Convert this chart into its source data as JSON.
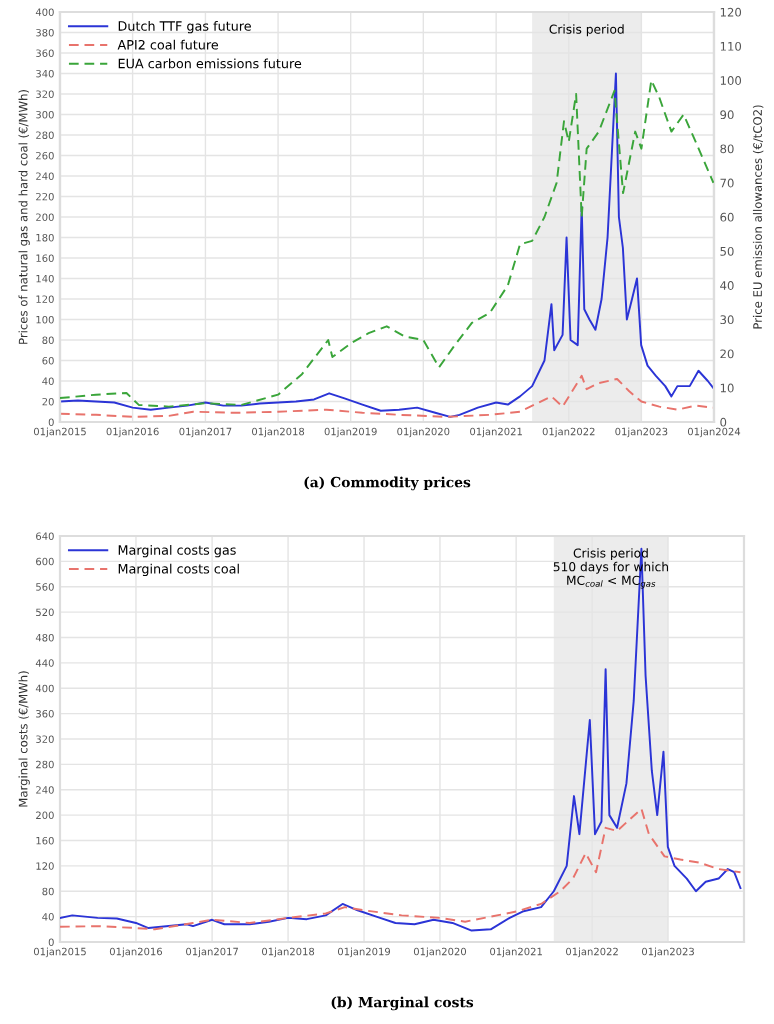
{
  "chart_data": [
    {
      "type": "line",
      "xlabel": null,
      "ylabel": "Prices of natural gas and hard coal (€/MWh)",
      "y2label": "Price EU emission allowances (€/tCO2)",
      "annotations": [
        "(a) Commodity prices"
      ],
      "legend": "top left",
      "grid": true,
      "xlim": [
        "2015-01-01",
        "2024-01-01"
      ],
      "xticks": [
        {
          "value": "2015-01-01",
          "label": "01jan2015"
        },
        {
          "value": "2016-01-01",
          "label": "01jan2016"
        },
        {
          "value": "2017-01-01",
          "label": "01jan2017"
        },
        {
          "value": "2018-01-01",
          "label": "01jan2018"
        },
        {
          "value": "2019-01-01",
          "label": "01jan2019"
        },
        {
          "value": "2020-01-01",
          "label": "01jan2020"
        },
        {
          "value": "2021-01-01",
          "label": "01jan2021"
        },
        {
          "value": "2022-01-01",
          "label": "01jan2022"
        },
        {
          "value": "2023-01-01",
          "label": "01jan2023"
        },
        {
          "value": "2024-01-01",
          "label": "01jan2024"
        }
      ],
      "ylim": [
        0,
        400
      ],
      "yticks": [
        0,
        20,
        40,
        60,
        80,
        100,
        120,
        140,
        160,
        180,
        200,
        220,
        240,
        260,
        280,
        300,
        320,
        340,
        360,
        380,
        400
      ],
      "y2lim": [
        0,
        120
      ],
      "y2ticks": [
        0,
        10,
        20,
        30,
        40,
        50,
        60,
        70,
        80,
        90,
        100,
        110,
        120
      ],
      "bands": [
        {
          "axis": "x",
          "from": "2021-07-01",
          "to": "2023-01-01",
          "label": "Crisis period",
          "color": "#ececec"
        }
      ],
      "series": [
        {
          "name": "Dutch TTF gas future",
          "color": "#2b34d6",
          "line_style": "solid",
          "x": [
            "2015-01-01",
            "2015-04-01",
            "2015-07-01",
            "2015-10-01",
            "2016-01-01",
            "2016-04-01",
            "2016-07-01",
            "2016-10-01",
            "2017-01-01",
            "2017-04-01",
            "2017-07-01",
            "2017-10-01",
            "2018-01-01",
            "2018-04-01",
            "2018-07-01",
            "2018-09-15",
            "2018-12-01",
            "2019-03-01",
            "2019-06-01",
            "2019-09-01",
            "2019-12-01",
            "2020-03-01",
            "2020-05-15",
            "2020-07-01",
            "2020-10-01",
            "2021-01-01",
            "2021-03-01",
            "2021-05-01",
            "2021-07-01",
            "2021-09-01",
            "2021-10-06",
            "2021-10-20",
            "2021-12-01",
            "2021-12-21",
            "2022-01-10",
            "2022-02-15",
            "2022-03-07",
            "2022-03-20",
            "2022-04-15",
            "2022-05-15",
            "2022-06-15",
            "2022-07-15",
            "2022-08-26",
            "2022-09-10",
            "2022-09-30",
            "2022-10-20",
            "2022-11-15",
            "2022-12-10",
            "2022-12-31",
            "2023-02-01",
            "2023-03-15",
            "2023-05-01",
            "2023-06-01",
            "2023-07-01",
            "2023-09-01",
            "2023-10-15",
            "2023-12-01",
            "2023-12-29"
          ],
          "values": [
            20,
            21,
            20,
            19,
            14,
            12,
            14,
            16,
            19,
            16,
            16,
            18,
            19,
            20,
            22,
            28,
            23,
            17,
            11,
            12,
            14,
            9,
            5,
            7,
            14,
            19,
            17,
            25,
            35,
            60,
            115,
            70,
            85,
            180,
            80,
            75,
            210,
            110,
            100,
            90,
            120,
            180,
            340,
            200,
            170,
            100,
            120,
            140,
            75,
            55,
            45,
            35,
            25,
            35,
            35,
            50,
            40,
            33
          ]
        },
        {
          "name": "API2 coal future",
          "color": "#e8736c",
          "line_style": "dashed",
          "x": [
            "2015-01-01",
            "2015-07-01",
            "2016-01-01",
            "2016-07-01",
            "2016-11-01",
            "2017-06-01",
            "2018-01-01",
            "2018-09-01",
            "2019-03-01",
            "2019-09-01",
            "2020-05-01",
            "2020-12-01",
            "2021-05-01",
            "2021-10-06",
            "2021-12-01",
            "2022-03-07",
            "2022-04-01",
            "2022-06-01",
            "2022-09-01",
            "2022-11-01",
            "2023-01-01",
            "2023-04-01",
            "2023-07-01",
            "2023-10-01",
            "2023-12-29"
          ],
          "values": [
            8,
            7,
            5,
            6,
            10,
            9,
            10,
            12,
            9,
            7,
            5,
            7,
            10,
            25,
            15,
            45,
            32,
            38,
            42,
            30,
            20,
            15,
            12,
            16,
            14
          ]
        },
        {
          "name": "EUA carbon emissions future",
          "color": "#3aa53a",
          "line_style": "dashed",
          "axis": "y2",
          "x": [
            "2015-01-01",
            "2015-07-01",
            "2015-12-01",
            "2016-02-01",
            "2016-07-01",
            "2017-01-01",
            "2017-07-01",
            "2018-01-01",
            "2018-05-01",
            "2018-09-10",
            "2018-10-01",
            "2019-01-01",
            "2019-04-01",
            "2019-07-01",
            "2019-10-01",
            "2020-01-01",
            "2020-03-20",
            "2020-06-01",
            "2020-09-01",
            "2020-12-01",
            "2021-03-01",
            "2021-05-01",
            "2021-07-01",
            "2021-09-01",
            "2021-11-01",
            "2021-12-08",
            "2022-01-01",
            "2022-02-07",
            "2022-03-07",
            "2022-04-01",
            "2022-06-01",
            "2022-08-19",
            "2022-10-01",
            "2022-12-01",
            "2023-01-01",
            "2023-02-20",
            "2023-04-01",
            "2023-06-01",
            "2023-08-01",
            "2023-10-01",
            "2023-12-29"
          ],
          "values": [
            7,
            8,
            8.5,
            5,
            4.5,
            5.5,
            5,
            8,
            14,
            24,
            19,
            23,
            26,
            28,
            25,
            24,
            16,
            22,
            29,
            32,
            40,
            52,
            53,
            60,
            70,
            88,
            82,
            96,
            60,
            80,
            85,
            97,
            67,
            85,
            80,
            100,
            95,
            85,
            90,
            82,
            70
          ]
        }
      ]
    },
    {
      "type": "line",
      "ylabel": "Marginal costs (€/MWh)",
      "annotations": [
        "(b) Marginal costs"
      ],
      "legend": "top left",
      "grid": true,
      "xlim": [
        "2015-01-01",
        "2024-01-01"
      ],
      "xticks": [
        {
          "value": "2015-01-01",
          "label": "01jan2015"
        },
        {
          "value": "2016-01-01",
          "label": "01jan2016"
        },
        {
          "value": "2017-01-01",
          "label": "01jan2017"
        },
        {
          "value": "2018-01-01",
          "label": "01jan2018"
        },
        {
          "value": "2019-01-01",
          "label": "01jan2019"
        },
        {
          "value": "2020-01-01",
          "label": "01jan2020"
        },
        {
          "value": "2021-01-01",
          "label": "01jan2021"
        },
        {
          "value": "2022-01-01",
          "label": "01jan2022"
        },
        {
          "value": "2023-01-01",
          "label": "01jan2023"
        }
      ],
      "ylim": [
        0,
        640
      ],
      "yticks": [
        0,
        40,
        80,
        120,
        160,
        200,
        240,
        280,
        320,
        360,
        400,
        440,
        480,
        520,
        560,
        600,
        640
      ],
      "bands": [
        {
          "axis": "x",
          "from": "2021-07-01",
          "to": "2023-01-01",
          "label": "Crisis period\n510 days for which\nMC$_{coal}$ < MC$_{gas}$",
          "color": "#ececec"
        }
      ],
      "series": [
        {
          "name": "Marginal costs gas",
          "color": "#2b34d6",
          "line_style": "solid",
          "x": [
            "2015-01-01",
            "2015-03-01",
            "2015-07-01",
            "2015-10-01",
            "2016-01-01",
            "2016-03-01",
            "2016-07-01",
            "2016-09-01",
            "2016-10-01",
            "2017-01-01",
            "2017-03-01",
            "2017-07-01",
            "2017-10-01",
            "2018-01-01",
            "2018-04-01",
            "2018-07-01",
            "2018-09-20",
            "2018-12-01",
            "2019-03-01",
            "2019-06-01",
            "2019-09-01",
            "2019-12-01",
            "2020-03-01",
            "2020-06-01",
            "2020-09-01",
            "2020-12-01",
            "2021-02-01",
            "2021-05-01",
            "2021-07-01",
            "2021-09-01",
            "2021-10-06",
            "2021-11-01",
            "2021-12-21",
            "2022-01-15",
            "2022-02-15",
            "2022-03-07",
            "2022-03-25",
            "2022-05-01",
            "2022-06-15",
            "2022-07-20",
            "2022-08-26",
            "2022-09-15",
            "2022-10-15",
            "2022-11-10",
            "2022-12-10",
            "2022-12-31",
            "2023-02-01",
            "2023-04-01",
            "2023-05-15",
            "2023-07-01",
            "2023-09-01",
            "2023-10-15",
            "2023-11-15",
            "2023-12-15"
          ],
          "values": [
            38,
            42,
            38,
            37,
            30,
            22,
            26,
            28,
            25,
            35,
            28,
            28,
            32,
            38,
            36,
            42,
            60,
            50,
            40,
            30,
            28,
            35,
            30,
            18,
            20,
            38,
            48,
            55,
            80,
            120,
            230,
            170,
            350,
            170,
            190,
            430,
            200,
            180,
            250,
            380,
            620,
            420,
            270,
            200,
            300,
            150,
            120,
            100,
            80,
            95,
            100,
            115,
            110,
            85
          ]
        },
        {
          "name": "Marginal costs coal",
          "color": "#e8736c",
          "line_style": "dashed",
          "x": [
            "2015-01-01",
            "2015-07-01",
            "2016-01-01",
            "2016-04-01",
            "2016-10-01",
            "2017-01-01",
            "2017-07-01",
            "2018-01-01",
            "2018-07-01",
            "2018-10-01",
            "2019-01-01",
            "2019-07-01",
            "2020-01-01",
            "2020-05-01",
            "2020-09-01",
            "2021-01-01",
            "2021-05-01",
            "2021-08-01",
            "2021-10-01",
            "2021-12-01",
            "2022-01-20",
            "2022-03-07",
            "2022-05-01",
            "2022-08-26",
            "2022-10-01",
            "2022-12-15",
            "2023-03-01",
            "2023-06-01",
            "2023-09-01",
            "2023-12-15"
          ],
          "values": [
            24,
            25,
            22,
            20,
            30,
            35,
            30,
            38,
            45,
            55,
            50,
            42,
            38,
            32,
            40,
            48,
            60,
            80,
            100,
            140,
            110,
            180,
            175,
            210,
            170,
            135,
            130,
            125,
            115,
            110
          ]
        }
      ]
    }
  ]
}
